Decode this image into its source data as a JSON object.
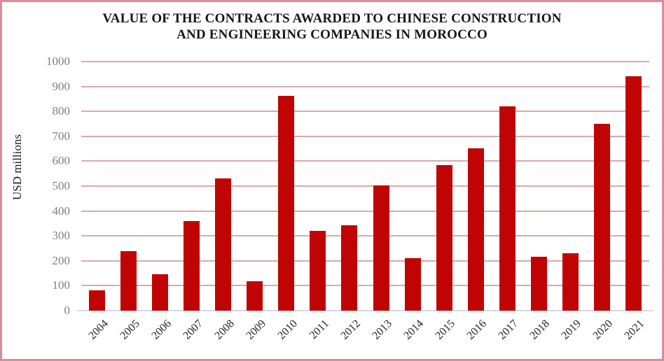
{
  "header": {
    "title_lines": [
      "VALUE OF THE CONTRACTS AWARDED TO CHINESE CONSTRUCTION",
      "AND ENGINEERING COMPANIES IN MOROCCO"
    ]
  },
  "chart_data": {
    "type": "bar",
    "title": "VALUE OF THE CONTRACTS AWARDED TO CHINESE CONSTRUCTION AND ENGINEERING COMPANIES IN MOROCCO",
    "xlabel": "",
    "ylabel": "USD millions",
    "categories": [
      "2004",
      "2005",
      "2006",
      "2007",
      "2008",
      "2009",
      "2010",
      "2011",
      "2012",
      "2013",
      "2014",
      "2015",
      "2016",
      "2017",
      "2018",
      "2019",
      "2020",
      "2021"
    ],
    "values": [
      82,
      240,
      146,
      360,
      531,
      118,
      863,
      321,
      343,
      503,
      212,
      585,
      652,
      820,
      215,
      231,
      750,
      941
    ],
    "ylim": [
      0,
      1000
    ],
    "ytick_step": 100,
    "grid": true,
    "legend": false,
    "bar_color": "#C00404",
    "gridline_color": "#DCA9A9",
    "axis_line_color": "#D9D9D9",
    "y_tick_label_color": "#7F7F7F",
    "x_tick_label_color": "#262626",
    "frame_border_color": "#D98D97"
  }
}
